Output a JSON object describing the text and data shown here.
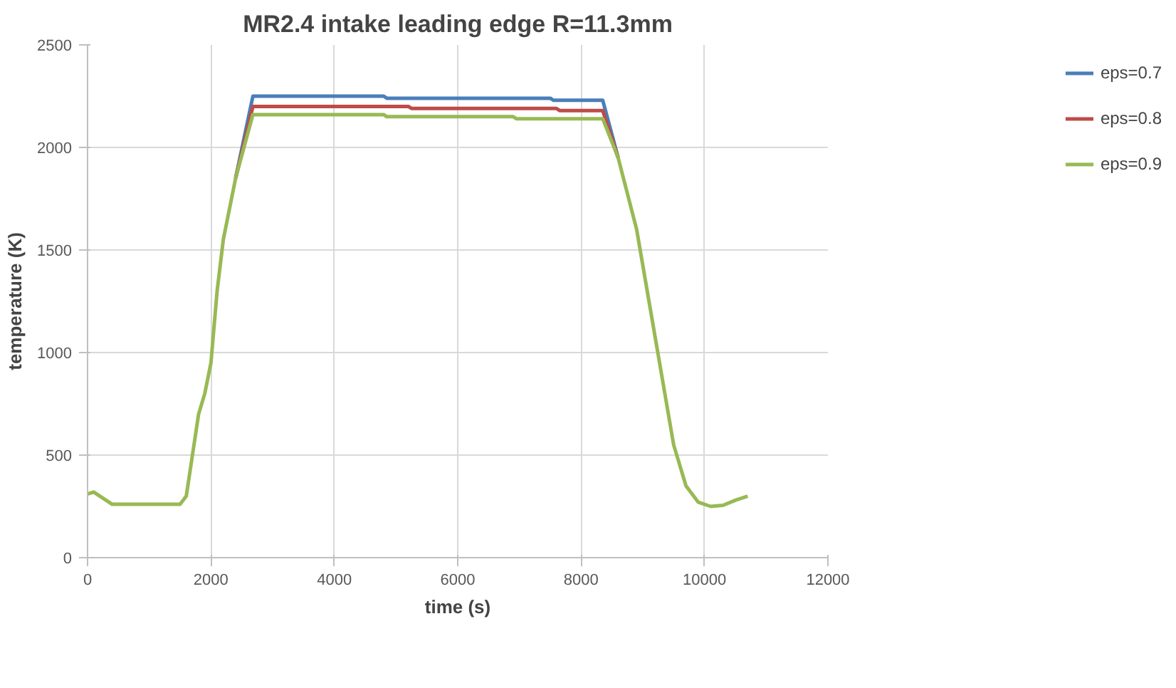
{
  "chart_data": {
    "type": "line",
    "title": "MR2.4 intake leading edge R=11.3mm",
    "xlabel": "time (s)",
    "ylabel": "temperature (K)",
    "xlim": [
      0,
      12000
    ],
    "xticks": [
      0,
      2000,
      4000,
      6000,
      8000,
      10000,
      12000
    ],
    "ylim": [
      0,
      2500
    ],
    "yticks": [
      0,
      500,
      1000,
      1500,
      2000,
      2500
    ],
    "grid": true,
    "legend": "right",
    "marker": "none",
    "line_style": "solid",
    "x": [
      0,
      100,
      200,
      400,
      1000,
      1500,
      1600,
      1700,
      1800,
      1900,
      2000,
      2100,
      2200,
      2400,
      2680,
      4800,
      4850,
      5200,
      5250,
      6900,
      6950,
      7500,
      7550,
      7600,
      7650,
      8300,
      8350,
      8600,
      8900,
      9100,
      9300,
      9500,
      9700,
      9900,
      10100,
      10300,
      10500,
      10700
    ],
    "series": [
      {
        "name": "eps=0.7",
        "color": "#4a7ebb",
        "values": [
          null,
          null,
          null,
          null,
          null,
          null,
          null,
          null,
          null,
          null,
          null,
          null,
          null,
          1850,
          2250,
          2250,
          2240,
          2240,
          2240,
          2240,
          2240,
          2240,
          2230,
          2230,
          2230,
          2230,
          2230,
          1950,
          null,
          null,
          null,
          null,
          null,
          null,
          null,
          null,
          null,
          null
        ]
      },
      {
        "name": "eps=0.8",
        "color": "#be4b48",
        "values": [
          null,
          null,
          null,
          null,
          null,
          null,
          null,
          null,
          null,
          null,
          null,
          null,
          null,
          1850,
          2200,
          2200,
          2200,
          2200,
          2190,
          2190,
          2190,
          2190,
          2190,
          2190,
          2180,
          2180,
          2180,
          1950,
          null,
          null,
          null,
          null,
          null,
          null,
          null,
          null,
          null,
          null
        ]
      },
      {
        "name": "eps=0.9",
        "color": "#98b954",
        "values": [
          310,
          320,
          300,
          260,
          260,
          260,
          300,
          500,
          700,
          800,
          950,
          1300,
          1550,
          1850,
          2160,
          2160,
          2150,
          2150,
          2150,
          2150,
          2140,
          2140,
          2140,
          2140,
          2140,
          2140,
          2140,
          1950,
          1600,
          1250,
          900,
          550,
          350,
          270,
          250,
          255,
          280,
          300
        ]
      }
    ]
  }
}
